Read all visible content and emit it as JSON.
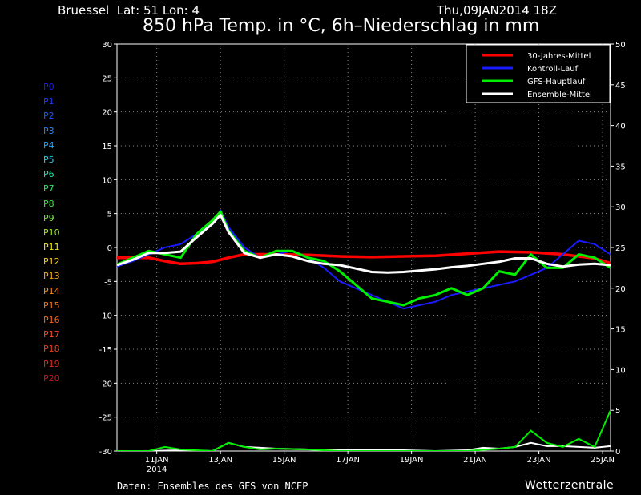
{
  "header": {
    "station": "Bruessel  Lat: 51 Lon: 4",
    "datestamp": "Thu,09JAN2014 18Z",
    "title": "850 hPa Temp. in °C, 6h–Niederschlag in mm"
  },
  "footer": {
    "source": "Daten: Ensembles des GFS von NCEP",
    "brand": "Wetterzentrale"
  },
  "members": [
    {
      "label": "P0",
      "color": "#1a1aff"
    },
    {
      "label": "P1",
      "color": "#1a3cff"
    },
    {
      "label": "P2",
      "color": "#1a5eff"
    },
    {
      "label": "P3",
      "color": "#1a86ff"
    },
    {
      "label": "P4",
      "color": "#1aaaff"
    },
    {
      "label": "P5",
      "color": "#1ad2e6"
    },
    {
      "label": "P6",
      "color": "#1ae6aa"
    },
    {
      "label": "P7",
      "color": "#2ae65a"
    },
    {
      "label": "P8",
      "color": "#3ce63c"
    },
    {
      "label": "P9",
      "color": "#6ee63c"
    },
    {
      "label": "P10",
      "color": "#a0e61a"
    },
    {
      "label": "P11",
      "color": "#e6e61a"
    },
    {
      "label": "P12",
      "color": "#f2c81a"
    },
    {
      "label": "P13",
      "color": "#f2aa1a"
    },
    {
      "label": "P14",
      "color": "#f28c1a"
    },
    {
      "label": "P15",
      "color": "#f2761a"
    },
    {
      "label": "P16",
      "color": "#f2641a"
    },
    {
      "label": "P17",
      "color": "#f24e1a"
    },
    {
      "label": "P18",
      "color": "#e6401a"
    },
    {
      "label": "P19",
      "color": "#dc2a1a"
    },
    {
      "label": "P20",
      "color": "#c81a1a"
    }
  ],
  "chart_data": {
    "type": "line",
    "xlabel": "",
    "ylabel": "",
    "x_ticks": [
      {
        "label": "11JAN",
        "x": 1.25,
        "sub": "2014"
      },
      {
        "label": "13JAN",
        "x": 3.25
      },
      {
        "label": "15JAN",
        "x": 5.25
      },
      {
        "label": "17JAN",
        "x": 7.25
      },
      {
        "label": "19JAN",
        "x": 9.25
      },
      {
        "label": "21JAN",
        "x": 11.25
      },
      {
        "label": "23JAN",
        "x": 13.25
      },
      {
        "label": "25JAN",
        "x": 15.25
      }
    ],
    "xlim": [
      0,
      15.5
    ],
    "ylim_left": [
      -30,
      30
    ],
    "left_ticks": [
      30,
      25,
      20,
      15,
      10,
      5,
      0,
      -5,
      -10,
      -15,
      -20,
      -25,
      -30
    ],
    "ylim_right": [
      0,
      50
    ],
    "right_ticks": [
      50,
      45,
      40,
      35,
      30,
      25,
      20,
      15,
      10,
      5,
      0
    ],
    "grid": true,
    "legend_placement": "top-right",
    "series": [
      {
        "name": "30-Jahres-Mittel",
        "color": "#ff0000",
        "width": 3.5,
        "axis": "left",
        "x": [
          0,
          1,
          1.5,
          2,
          2.5,
          3,
          3.5,
          4,
          5,
          6,
          7,
          8,
          9,
          10,
          11,
          12,
          13,
          14,
          15,
          15.5
        ],
        "y": [
          -1.5,
          -1.5,
          -2,
          -2.4,
          -2.3,
          -2.1,
          -1.5,
          -1,
          -1,
          -1.1,
          -1.3,
          -1.4,
          -1.3,
          -1.2,
          -0.9,
          -0.6,
          -0.7,
          -1,
          -1.6,
          -2.3
        ]
      },
      {
        "name": "Kontroll-Lauf",
        "color": "#1a1aff",
        "width": 2,
        "axis": "left",
        "x": [
          0,
          0.5,
          1,
          1.5,
          2,
          2.5,
          3,
          3.25,
          3.5,
          4,
          4.5,
          5,
          5.5,
          6,
          6.5,
          7,
          7.5,
          8,
          8.5,
          9,
          9.5,
          10,
          10.5,
          11,
          11.5,
          12,
          12.5,
          13,
          13.5,
          14,
          14.5,
          15,
          15.5
        ],
        "y": [
          -2.8,
          -2,
          -1,
          0,
          0.5,
          2,
          3.5,
          5.5,
          3,
          0,
          -1.5,
          -1,
          -0.5,
          -1.5,
          -3,
          -5,
          -6,
          -7,
          -8,
          -9,
          -8.5,
          -8,
          -7,
          -6.5,
          -6,
          -5.5,
          -5,
          -4,
          -3,
          -1,
          1,
          0.5,
          -1
        ]
      },
      {
        "name": "GFS-Hauptlauf",
        "color": "#00ee00",
        "width": 3,
        "axis": "left",
        "x": [
          0,
          0.5,
          1,
          1.5,
          2,
          2.5,
          3,
          3.25,
          3.5,
          4,
          4.5,
          5,
          5.5,
          6,
          6.5,
          7,
          7.5,
          8,
          8.5,
          9,
          9.5,
          10,
          10.5,
          11,
          11.5,
          12,
          12.5,
          13,
          13.5,
          14,
          14.5,
          15,
          15.5
        ],
        "y": [
          -2.5,
          -1.5,
          -0.5,
          -1,
          -1.5,
          2,
          4,
          5.3,
          2.5,
          -0.5,
          -1.5,
          -0.5,
          -0.5,
          -1.5,
          -2,
          -3.5,
          -5.5,
          -7.5,
          -8,
          -8.5,
          -7.5,
          -7,
          -6,
          -7,
          -6,
          -3.5,
          -4,
          -1,
          -3,
          -3,
          -1,
          -1.5,
          -3
        ]
      },
      {
        "name": "Ensemble-Mittel",
        "color": "#ffffff",
        "width": 3,
        "axis": "left",
        "x": [
          0,
          0.5,
          1,
          1.5,
          2,
          2.5,
          3,
          3.25,
          3.5,
          4,
          4.5,
          5,
          5.5,
          6,
          6.5,
          7,
          7.5,
          8,
          8.5,
          9,
          9.5,
          10,
          10.5,
          11,
          11.5,
          12,
          12.5,
          13,
          13.5,
          14,
          14.5,
          15,
          15.5
        ],
        "y": [
          -2.6,
          -1.8,
          -0.8,
          -0.8,
          -0.6,
          1.5,
          3.5,
          4.8,
          2.3,
          -0.8,
          -1.5,
          -1,
          -1.3,
          -2,
          -2.4,
          -2.6,
          -3.1,
          -3.6,
          -3.7,
          -3.6,
          -3.4,
          -3.2,
          -2.9,
          -2.7,
          -2.4,
          -2.1,
          -1.6,
          -1.6,
          -2.4,
          -2.8,
          -2.5,
          -2.4,
          -2.6
        ]
      }
    ],
    "precip_main": {
      "name": "GFS-Hauptlauf precipitation",
      "color": "#00ee00",
      "axis": "right",
      "x": [
        0,
        1,
        1.5,
        2,
        3,
        3.5,
        4,
        4.5,
        5,
        6,
        7,
        8,
        9,
        10,
        11,
        12,
        12.5,
        13,
        13.5,
        14,
        14.5,
        15,
        15.5
      ],
      "y": [
        0,
        0,
        0.5,
        0.2,
        0,
        1,
        0.5,
        0.2,
        0.3,
        0.2,
        0,
        0,
        0,
        0,
        0,
        0.3,
        0.5,
        2.5,
        1,
        0.5,
        1.5,
        0.5,
        5
      ]
    },
    "precip_mean": {
      "name": "Ensemble-Mittel precipitation",
      "color": "#ffffff",
      "axis": "right",
      "x": [
        0,
        1,
        2,
        3,
        3.5,
        4,
        4.5,
        5,
        6,
        7,
        8,
        9,
        10,
        11,
        11.5,
        12,
        12.5,
        13,
        13.5,
        14,
        14.5,
        15,
        15.5
      ],
      "y": [
        0,
        0,
        0.1,
        0,
        1,
        0.5,
        0.4,
        0.3,
        0.2,
        0.1,
        0.1,
        0.1,
        0,
        0.1,
        0.4,
        0.3,
        0.5,
        1,
        0.6,
        0.6,
        0.5,
        0.4,
        0.6
      ]
    }
  }
}
